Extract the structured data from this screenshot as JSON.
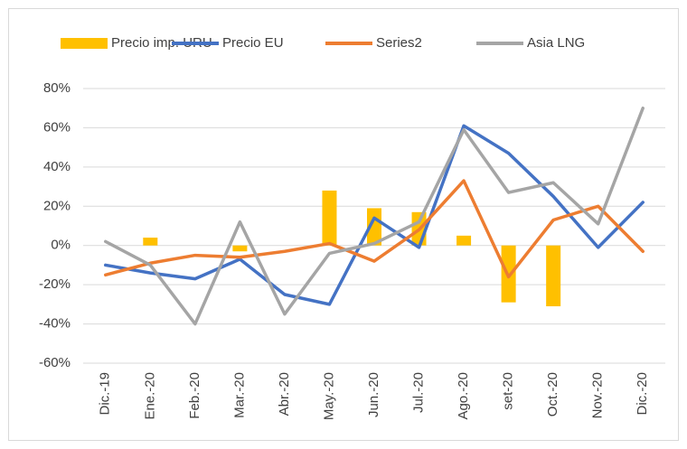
{
  "chart_data": {
    "type": "bar-line",
    "categories": [
      "Dic.-19",
      "Ene.-20",
      "Feb.-20",
      "Mar.-20",
      "Abr.-20",
      "May.-20",
      "Jun.-20",
      "Jul.-20",
      "Ago.-20",
      "set-20",
      "Oct.-20",
      "Nov.-20",
      "Dic.-20"
    ],
    "series": [
      {
        "name": "Precio imp. URU",
        "type": "bar",
        "color": "#ffc000",
        "values": [
          null,
          4,
          null,
          -3,
          null,
          28,
          19,
          17,
          5,
          -29,
          -31,
          null,
          null
        ]
      },
      {
        "name": "Precio EU",
        "type": "line",
        "color": "#4472c4",
        "values": [
          -10,
          -14,
          -17,
          -7,
          -25,
          -30,
          14,
          -1,
          61,
          47,
          25,
          -1,
          22
        ]
      },
      {
        "name": "Series2",
        "type": "line",
        "color": "#ed7d31",
        "values": [
          -15,
          -9,
          -5,
          -6,
          -3,
          1,
          -8,
          8,
          33,
          -16,
          13,
          20,
          -3
        ]
      },
      {
        "name": "Asia LNG",
        "type": "line",
        "color": "#a5a5a5",
        "values": [
          2,
          -10,
          -40,
          12,
          -35,
          -4,
          1,
          12,
          59,
          27,
          32,
          11,
          70
        ]
      }
    ],
    "ylim": [
      -60,
      80
    ],
    "yticks": [
      {
        "value": -60,
        "label": "-60%"
      },
      {
        "value": -40,
        "label": "-40%"
      },
      {
        "value": -20,
        "label": "-20%"
      },
      {
        "value": 0,
        "label": "0%"
      },
      {
        "value": 20,
        "label": "20%"
      },
      {
        "value": 40,
        "label": "40%"
      },
      {
        "value": 60,
        "label": "60%"
      },
      {
        "value": 80,
        "label": "80%"
      }
    ],
    "grid": true,
    "legend": "top"
  }
}
